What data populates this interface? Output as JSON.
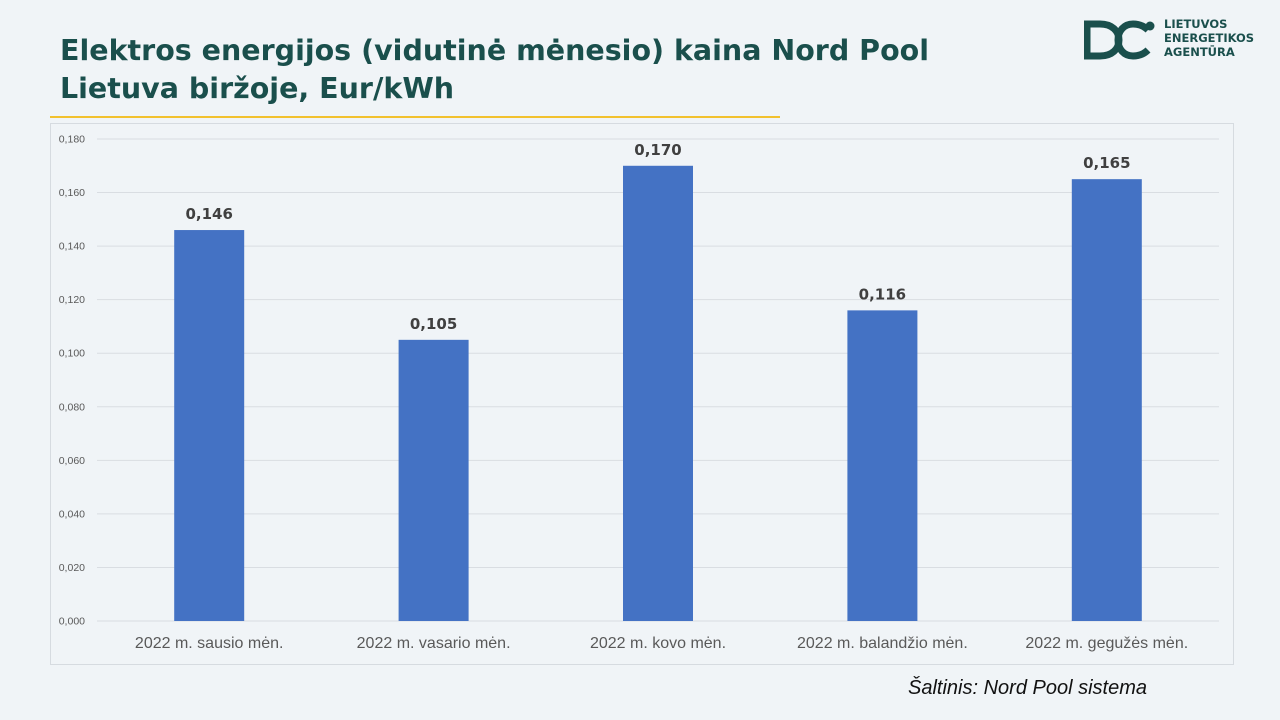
{
  "slide": {
    "title": "Elektros energijos (vidutinė mėnesio) kaina Nord Pool Lietuva biržoje, Eur/kWh",
    "source": "Šaltinis: Nord Pool sistema"
  },
  "logo": {
    "icon": "lea-logo-mark",
    "lines": [
      "LIETUVOS",
      "ENERGETIKOS",
      "AGENTŪRA"
    ],
    "color": "#1a4f4c"
  },
  "colors": {
    "title": "#1a4f4c",
    "accent_line": "#f2c12e",
    "bar": "#4472c4",
    "grid": "#d9dde2",
    "background": "#f0f4f7"
  },
  "chart_data": {
    "type": "bar",
    "title": "",
    "xlabel": "",
    "ylabel": "",
    "categories": [
      "2022 m. sausio mėn.",
      "2022 m. vasario mėn.",
      "2022 m. kovo mėn.",
      "2022 m. balandžio mėn.",
      "2022 m. gegužės mėn."
    ],
    "values": [
      0.146,
      0.105,
      0.17,
      0.116,
      0.165
    ],
    "data_labels": [
      "0,146",
      "0,105",
      "0,170",
      "0,116",
      "0,165"
    ],
    "ylim": [
      0,
      0.18
    ],
    "yticks": [
      0,
      0.02,
      0.04,
      0.06,
      0.08,
      0.1,
      0.12,
      0.14,
      0.16,
      0.18
    ],
    "ytick_labels": [
      "0,000",
      "0,020",
      "0,040",
      "0,060",
      "0,080",
      "0,100",
      "0,120",
      "0,140",
      "0,160",
      "0,180"
    ],
    "grid": true,
    "legend": "none"
  }
}
